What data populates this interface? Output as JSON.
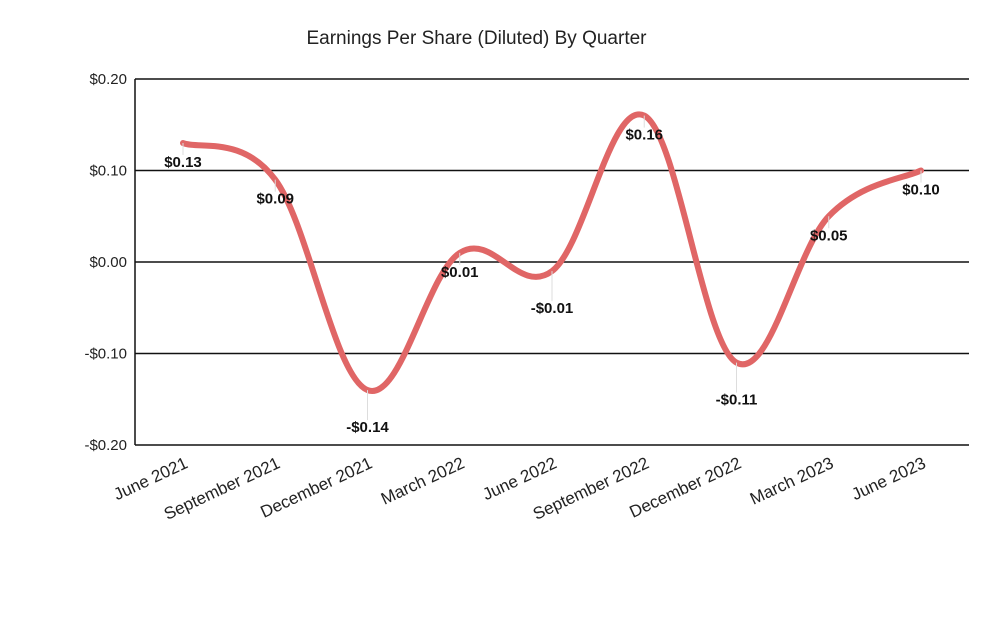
{
  "chart_data": {
    "type": "line",
    "title": "Earnings Per Share (Diluted) By Quarter",
    "xlabel": "",
    "ylabel": "",
    "categories": [
      "June 2021",
      "September 2021",
      "December 2021",
      "March 2022",
      "June 2022",
      "September 2022",
      "December 2022",
      "March 2023",
      "June 2023"
    ],
    "series": [
      {
        "values": [
          0.13,
          0.09,
          -0.14,
          0.01,
          -0.01,
          0.16,
          -0.11,
          0.05,
          0.1
        ]
      }
    ],
    "data_labels": [
      "$0.13",
      "$0.09",
      "-$0.14",
      "$0.01",
      "-$0.01",
      "$0.16",
      "-$0.11",
      "$0.05",
      "$0.10"
    ],
    "ylim": [
      -0.2,
      0.2
    ],
    "yticks": [
      0.2,
      0.1,
      0.0,
      -0.1,
      -0.2
    ],
    "ytick_labels": [
      "$0.20",
      "$0.10",
      "$0.00",
      "-$0.10",
      "-$0.20"
    ],
    "grid": true,
    "smooth": true,
    "line_color": "#e06666",
    "legend": "none"
  }
}
